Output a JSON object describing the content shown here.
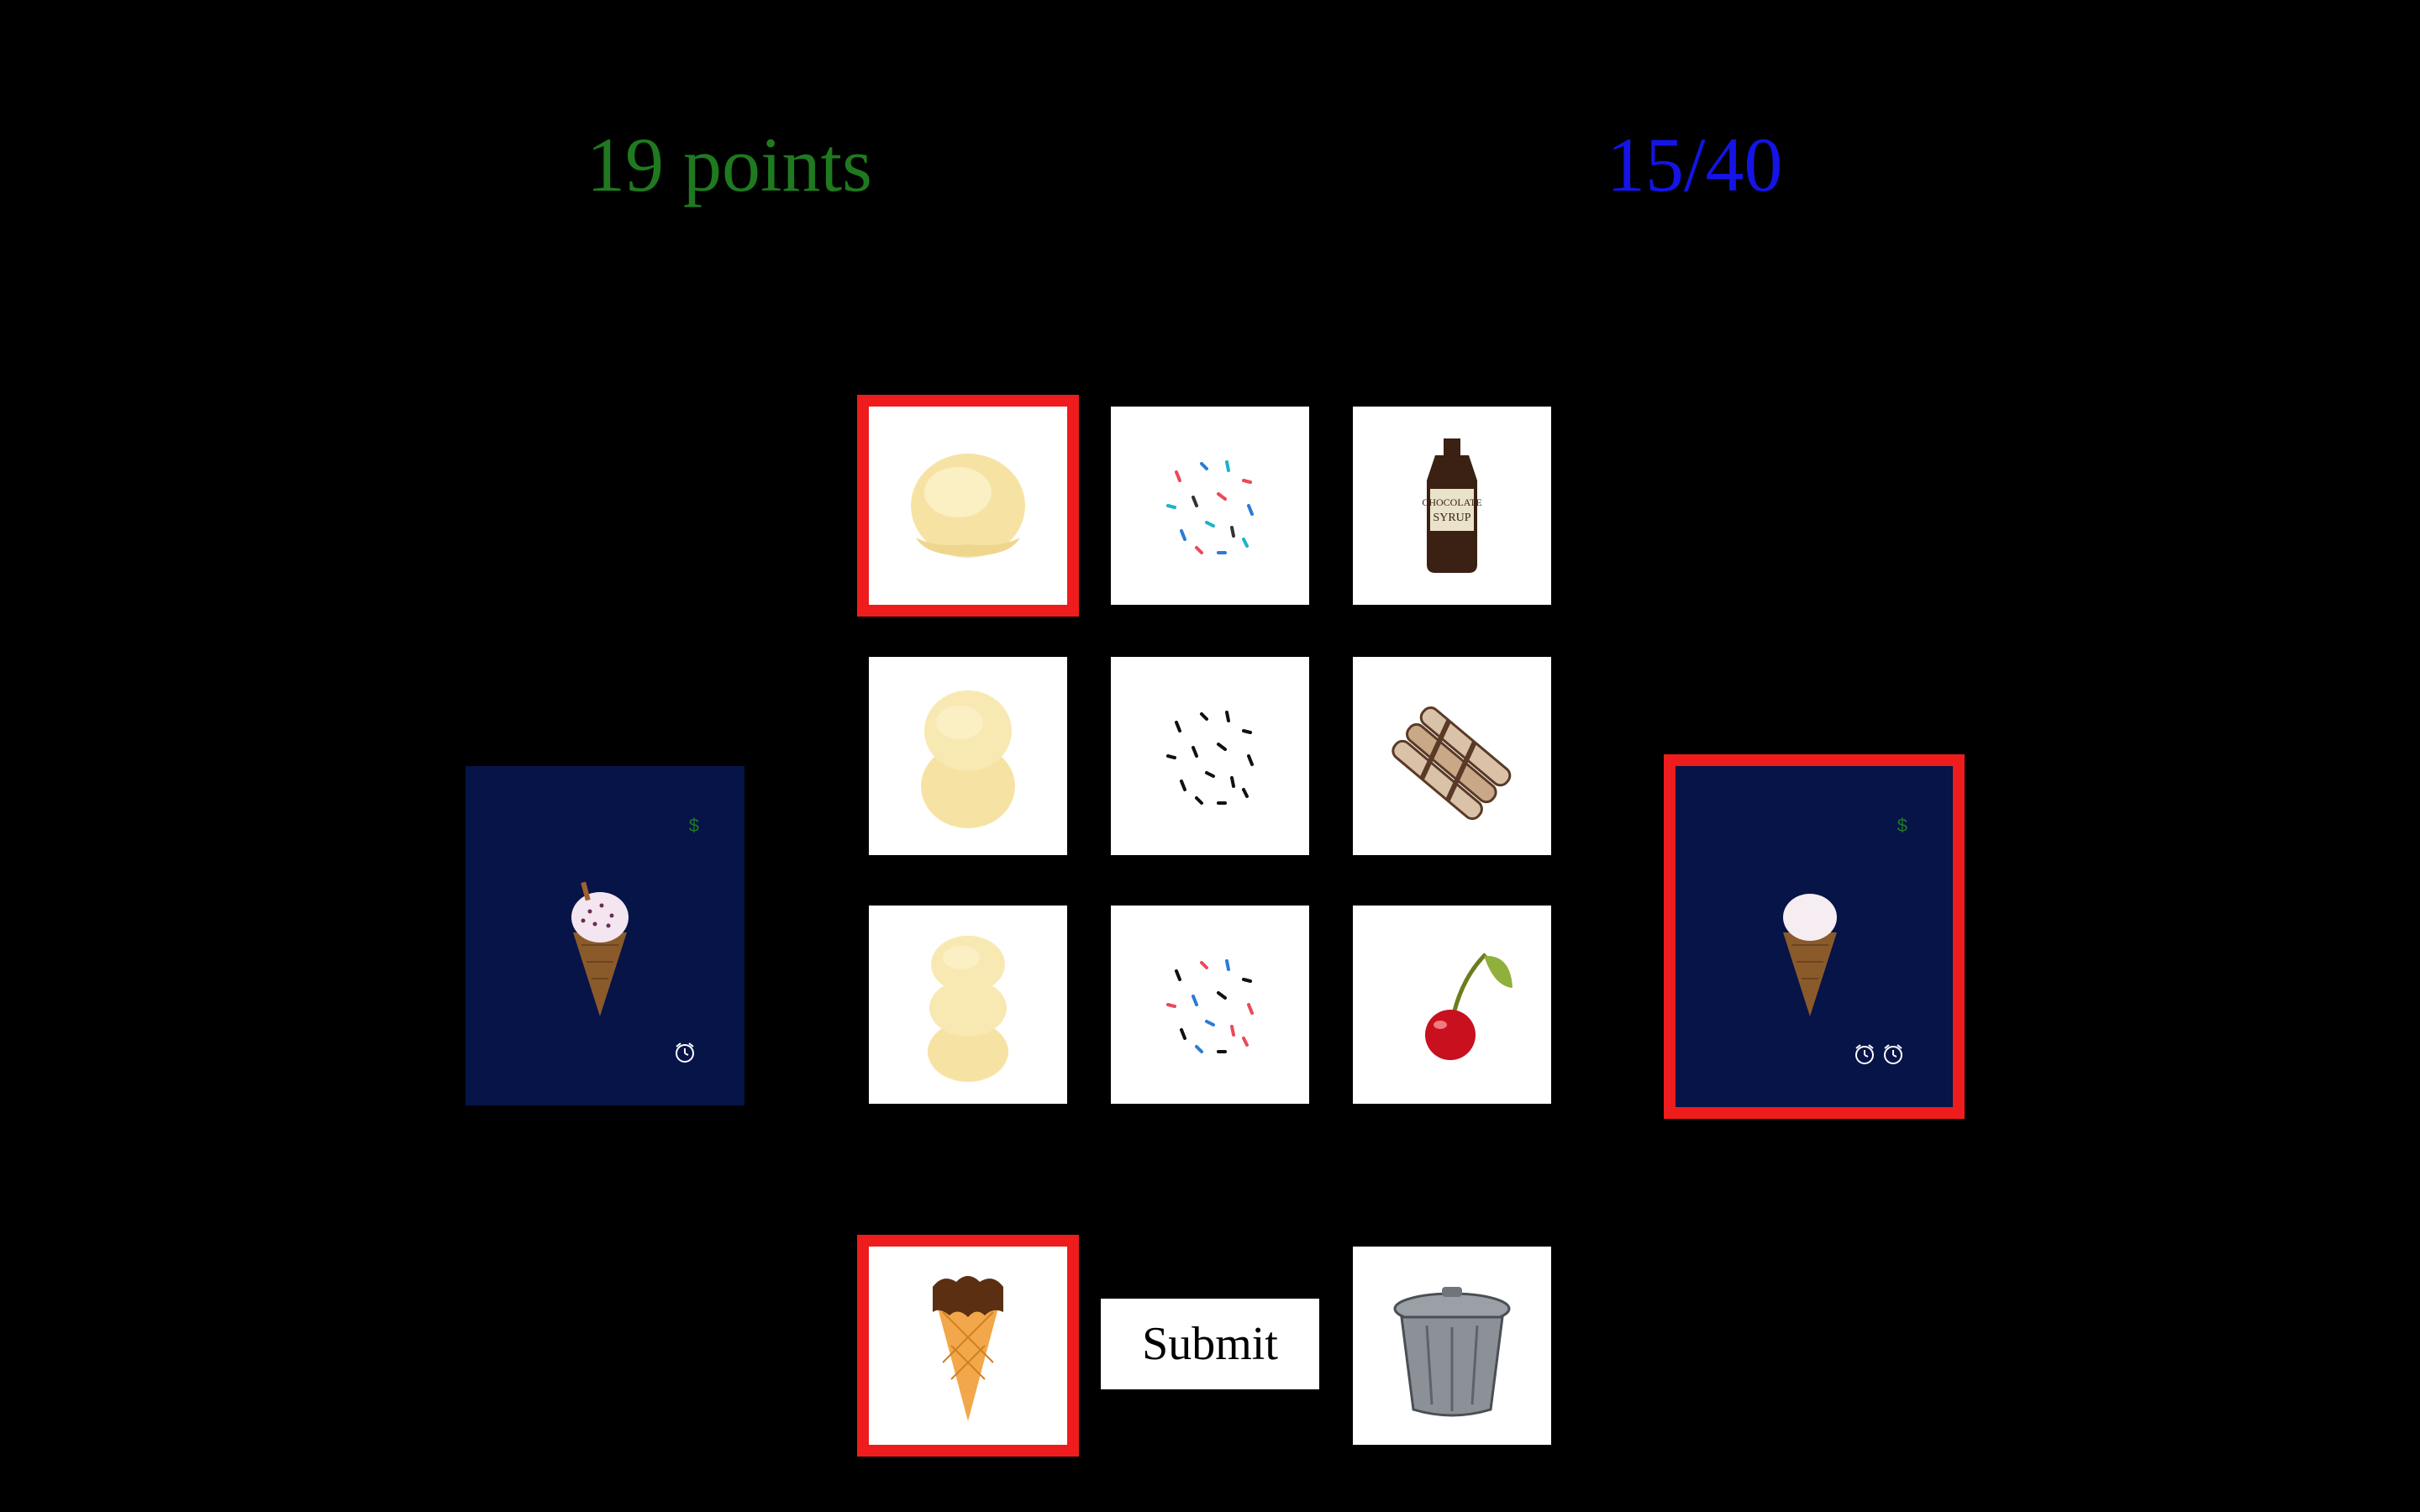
{
  "header": {
    "points": "19 points",
    "progress": "15/40"
  },
  "colors": {
    "background": "#000000",
    "points_text": "#1f7a1f",
    "progress_text": "#1414e6",
    "selection_border": "#ee1c1c",
    "order_card_bg": "#061448",
    "tile_bg": "#ffffff"
  },
  "ingredients": [
    {
      "name": "one-scoop-vanilla",
      "icon": "scoop-1-icon",
      "selected": true
    },
    {
      "name": "rainbow-sprinkles",
      "icon": "rainbow-sprinkles-icon",
      "selected": false
    },
    {
      "name": "chocolate-syrup",
      "icon": "chocolate-syrup-bottle-icon",
      "selected": false
    },
    {
      "name": "two-scoops-vanilla",
      "icon": "scoop-2-icon",
      "selected": false
    },
    {
      "name": "chocolate-sprinkles",
      "icon": "chocolate-sprinkles-icon",
      "selected": false
    },
    {
      "name": "wafer-rolls",
      "icon": "wafer-rolls-icon",
      "selected": false
    },
    {
      "name": "three-scoops-vanilla",
      "icon": "scoop-3-icon",
      "selected": false
    },
    {
      "name": "mixed-sprinkles",
      "icon": "mixed-sprinkles-icon",
      "selected": false
    },
    {
      "name": "cherry",
      "icon": "cherry-icon",
      "selected": false
    }
  ],
  "bottom_row": {
    "cone": {
      "icon": "chocolate-dipped-cone-icon",
      "selected": true
    },
    "submit_label": "Submit",
    "trash": {
      "icon": "trash-can-icon"
    }
  },
  "orders": [
    {
      "price": "$",
      "icon": "sprinkle-cone-with-wafer-icon",
      "timers": 1,
      "selected": false
    },
    {
      "price": "$",
      "icon": "plain-cone-icon",
      "timers": 2,
      "selected": true
    }
  ]
}
